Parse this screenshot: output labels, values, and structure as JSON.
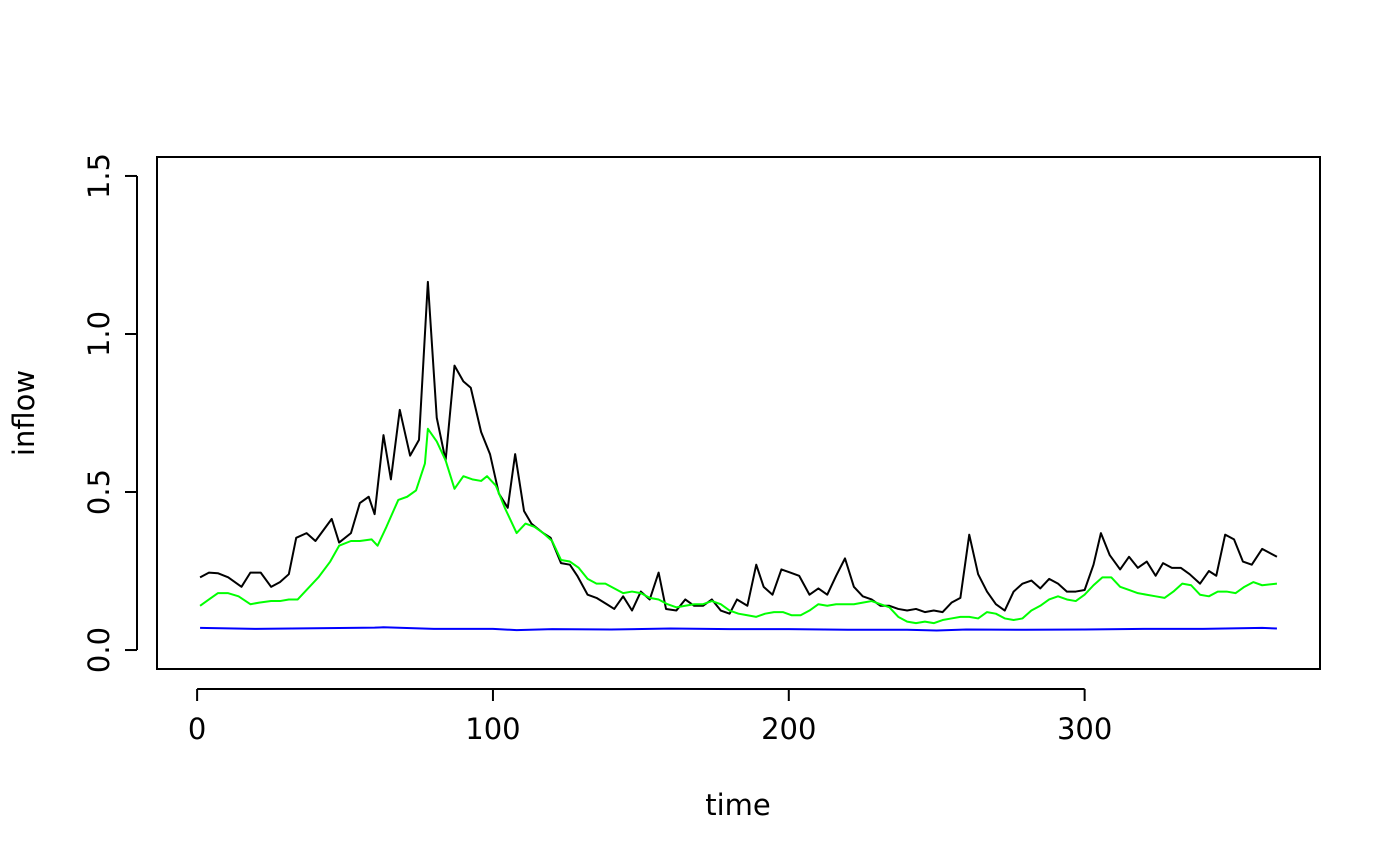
{
  "chart_data": {
    "type": "line",
    "xlabel": "time",
    "ylabel": "inflow",
    "xlim": [
      -13.56,
      379.56
    ],
    "ylim": [
      -0.06,
      1.56
    ],
    "xticks": [
      0,
      100,
      200,
      300
    ],
    "yticks": [
      {
        "value": 0,
        "label": "0.0"
      },
      {
        "value": 0.5,
        "label": "0.5"
      },
      {
        "value": 1,
        "label": "1.0"
      },
      {
        "value": 1.5,
        "label": "1.5"
      }
    ],
    "grid": false,
    "series": [
      {
        "color": "#000000",
        "x": [
          1,
          4,
          7,
          10.5,
          15,
          18,
          21.5,
          25,
          28,
          31,
          33.5,
          37,
          40,
          45.5,
          48,
          52,
          55,
          58,
          60,
          63,
          65.5,
          68.5,
          72,
          75,
          78,
          81,
          84,
          87,
          90,
          92.5,
          96,
          99,
          102,
          105,
          107.5,
          110.5,
          113,
          117,
          119.5,
          123,
          126,
          128.5,
          132,
          135,
          138.5,
          141,
          144,
          147,
          150,
          153,
          156,
          158.5,
          162,
          165,
          168,
          171,
          174,
          177,
          180,
          182.5,
          186,
          189,
          191.5,
          194.5,
          197.5,
          200.5,
          203.5,
          207,
          210,
          213,
          216,
          219,
          222,
          225,
          228,
          231,
          234,
          237,
          240,
          243,
          246,
          249,
          252,
          255,
          258,
          261,
          264,
          267,
          270,
          273,
          276,
          279,
          282,
          285,
          288,
          291,
          294,
          297,
          300,
          303,
          305.5,
          308.5,
          312,
          315,
          318,
          321,
          324,
          326.5,
          329.5,
          332.5,
          335.5,
          339,
          342,
          344.5,
          347.5,
          350.5,
          353.5,
          356.5,
          360,
          365
        ],
        "values": [
          0.23,
          0.245,
          0.243,
          0.23,
          0.2,
          0.245,
          0.245,
          0.2,
          0.215,
          0.24,
          0.355,
          0.37,
          0.345,
          0.415,
          0.34,
          0.37,
          0.465,
          0.485,
          0.43,
          0.68,
          0.54,
          0.76,
          0.615,
          0.665,
          1.165,
          0.735,
          0.6,
          0.9,
          0.85,
          0.83,
          0.69,
          0.62,
          0.495,
          0.45,
          0.62,
          0.44,
          0.4,
          0.37,
          0.355,
          0.275,
          0.27,
          0.235,
          0.175,
          0.165,
          0.145,
          0.13,
          0.17,
          0.125,
          0.185,
          0.16,
          0.245,
          0.13,
          0.125,
          0.16,
          0.14,
          0.14,
          0.16,
          0.125,
          0.115,
          0.16,
          0.14,
          0.27,
          0.2,
          0.175,
          0.255,
          0.245,
          0.235,
          0.175,
          0.195,
          0.175,
          0.235,
          0.29,
          0.2,
          0.17,
          0.16,
          0.14,
          0.14,
          0.13,
          0.125,
          0.13,
          0.12,
          0.125,
          0.12,
          0.15,
          0.165,
          0.365,
          0.24,
          0.185,
          0.145,
          0.125,
          0.185,
          0.21,
          0.22,
          0.195,
          0.225,
          0.21,
          0.185,
          0.185,
          0.19,
          0.27,
          0.37,
          0.3,
          0.255,
          0.295,
          0.26,
          0.28,
          0.235,
          0.275,
          0.26,
          0.26,
          0.24,
          0.21,
          0.25,
          0.235,
          0.365,
          0.35,
          0.28,
          0.27,
          0.32,
          0.295
        ]
      },
      {
        "color": "#00ff00",
        "x": [
          1,
          4,
          7,
          10.5,
          14,
          18,
          21,
          25,
          28,
          31,
          34,
          37,
          41,
          45,
          48,
          52,
          55,
          59,
          61,
          64,
          68,
          71,
          74,
          77,
          78,
          81,
          84,
          87,
          90,
          93,
          96,
          98,
          101,
          104,
          108,
          111,
          114,
          117,
          120,
          123,
          126,
          129,
          132,
          135,
          138,
          141,
          144,
          147,
          150,
          153,
          156,
          159,
          162,
          165,
          168,
          171,
          174,
          177,
          180,
          183,
          186,
          189,
          192,
          195,
          198,
          201,
          204,
          207,
          210,
          213,
          216,
          219,
          222,
          225,
          228,
          231,
          234,
          237,
          240,
          243,
          246,
          249,
          252,
          255,
          258,
          261,
          264,
          267,
          270,
          273,
          276,
          279,
          282,
          285,
          288,
          291,
          294,
          297,
          300,
          303,
          306,
          309,
          312,
          315,
          318,
          321,
          324,
          327,
          330,
          333,
          336,
          339,
          342,
          345,
          348,
          351,
          354,
          357,
          360,
          365
        ],
        "values": [
          0.14,
          0.16,
          0.18,
          0.18,
          0.17,
          0.145,
          0.15,
          0.155,
          0.155,
          0.16,
          0.16,
          0.19,
          0.23,
          0.28,
          0.33,
          0.345,
          0.345,
          0.35,
          0.33,
          0.39,
          0.475,
          0.485,
          0.505,
          0.59,
          0.7,
          0.66,
          0.6,
          0.51,
          0.55,
          0.54,
          0.535,
          0.55,
          0.52,
          0.45,
          0.37,
          0.4,
          0.39,
          0.37,
          0.345,
          0.285,
          0.28,
          0.26,
          0.225,
          0.21,
          0.21,
          0.195,
          0.18,
          0.185,
          0.18,
          0.165,
          0.16,
          0.145,
          0.135,
          0.14,
          0.145,
          0.145,
          0.155,
          0.145,
          0.125,
          0.115,
          0.11,
          0.105,
          0.115,
          0.12,
          0.12,
          0.11,
          0.11,
          0.125,
          0.145,
          0.14,
          0.145,
          0.145,
          0.145,
          0.15,
          0.155,
          0.145,
          0.135,
          0.105,
          0.09,
          0.085,
          0.09,
          0.085,
          0.095,
          0.1,
          0.105,
          0.105,
          0.1,
          0.12,
          0.115,
          0.1,
          0.095,
          0.1,
          0.125,
          0.14,
          0.16,
          0.17,
          0.16,
          0.155,
          0.175,
          0.205,
          0.23,
          0.23,
          0.2,
          0.19,
          0.18,
          0.175,
          0.17,
          0.165,
          0.185,
          0.21,
          0.205,
          0.175,
          0.17,
          0.185,
          0.185,
          0.18,
          0.2,
          0.215,
          0.205,
          0.21
        ]
      },
      {
        "color": "#0000ff",
        "x": [
          1,
          20,
          40,
          60,
          63,
          80,
          100,
          108,
          120,
          140,
          160,
          180,
          200,
          220,
          240,
          250,
          260,
          280,
          300,
          320,
          340,
          360,
          365
        ],
        "values": [
          0.07,
          0.067,
          0.069,
          0.071,
          0.072,
          0.067,
          0.067,
          0.063,
          0.066,
          0.065,
          0.068,
          0.066,
          0.066,
          0.064,
          0.064,
          0.062,
          0.065,
          0.064,
          0.065,
          0.067,
          0.067,
          0.07,
          0.068
        ]
      }
    ]
  }
}
